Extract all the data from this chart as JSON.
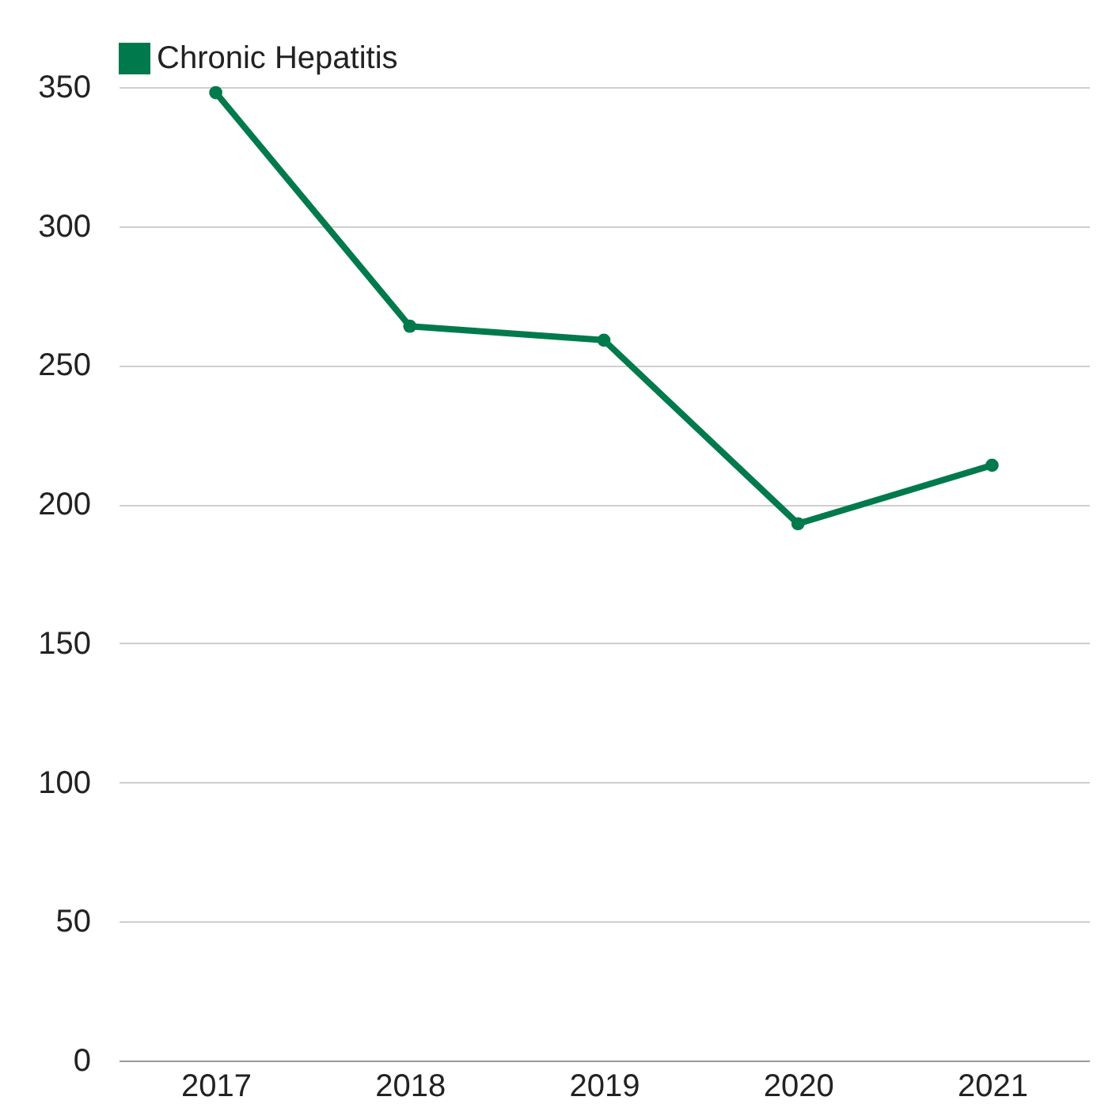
{
  "chart_data": {
    "type": "line",
    "categories": [
      "2017",
      "2018",
      "2019",
      "2020",
      "2021"
    ],
    "series": [
      {
        "name": "Chronic Hepatitis",
        "color": "#007a4c",
        "values": [
          348,
          264,
          259,
          193,
          214
        ]
      }
    ],
    "ylim": [
      0,
      350
    ],
    "yticks": [
      0,
      50,
      100,
      150,
      200,
      250,
      300,
      350
    ],
    "grid": "y",
    "legend": "top",
    "marker": "circle",
    "line_style": "solid"
  }
}
